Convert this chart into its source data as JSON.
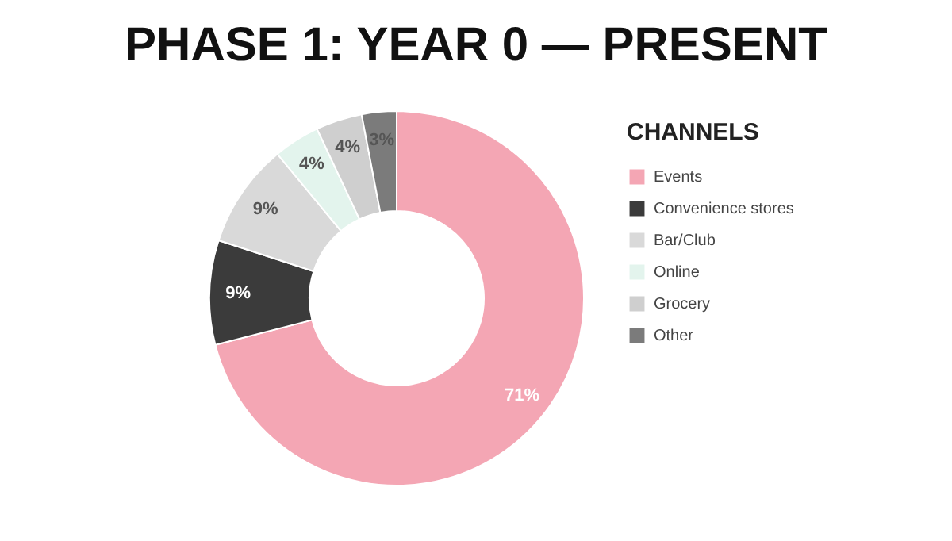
{
  "chart_data": {
    "type": "donut",
    "title": "PHASE 1: YEAR 0 — PRESENT",
    "legend_title": "CHANNELS",
    "legend": "right",
    "categories": [
      "Events",
      "Convenience stores",
      "Bar/Club",
      "Online",
      "Grocery",
      "Other"
    ],
    "values": [
      71,
      9,
      9,
      4,
      4,
      3
    ],
    "colors": [
      "#f4a6b4",
      "#3b3b3b",
      "#d9d9d9",
      "#e3f4ed",
      "#cfcfcf",
      "#7b7b7b"
    ],
    "value_labels": [
      "71%",
      "9%",
      "9%",
      "4%",
      "4%",
      "3%"
    ]
  }
}
